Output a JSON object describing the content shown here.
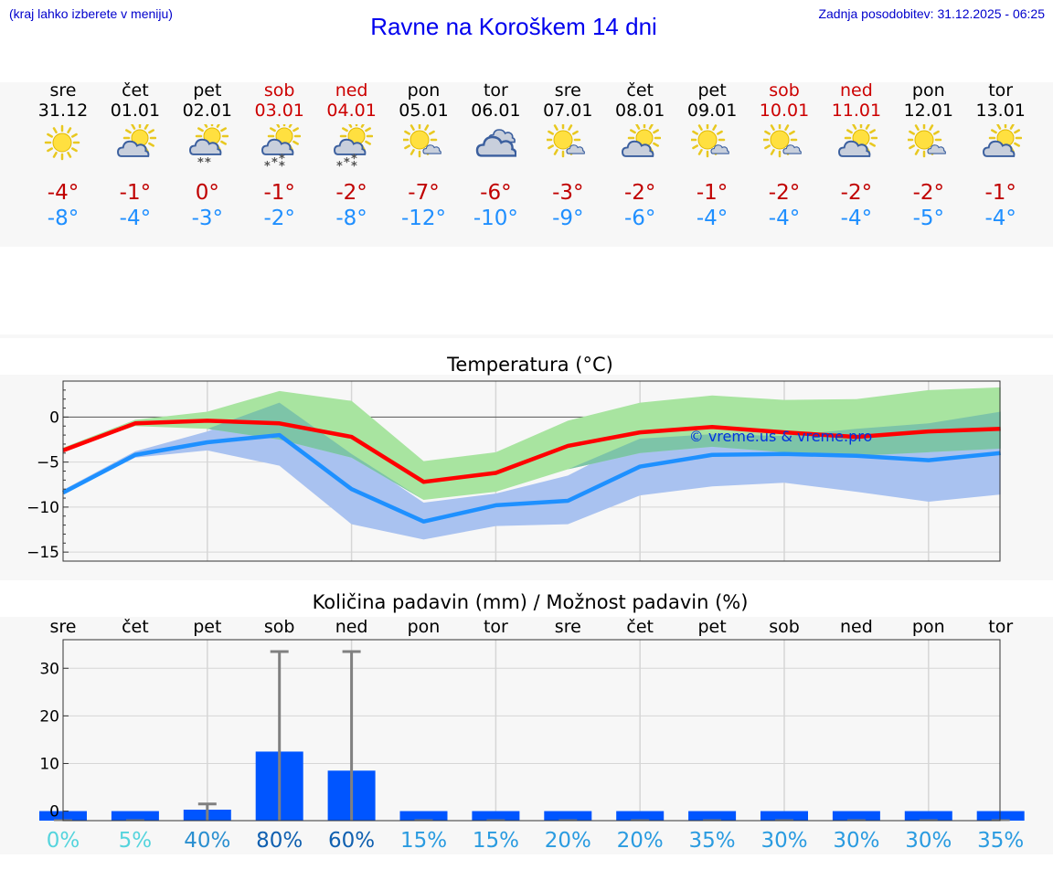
{
  "header": {
    "hint": "(kraj lahko izberete v meniju)",
    "title": "Ravne na Koroškem 14 dni",
    "updated": "Zadnja posodobitev: 31.12.2025 - 06:25"
  },
  "days": [
    {
      "name": "sre",
      "date": "31.12",
      "weekend": false,
      "icon": "sun-icon",
      "tmax": "-4°",
      "tmin": "-8°"
    },
    {
      "name": "čet",
      "date": "01.01",
      "weekend": false,
      "icon": "sun-behind-cloud-icon",
      "tmax": "-1°",
      "tmin": "-4°"
    },
    {
      "name": "pet",
      "date": "02.01",
      "weekend": false,
      "icon": "cloud-light-snow-icon",
      "tmax": "0°",
      "tmin": "-3°"
    },
    {
      "name": "sob",
      "date": "03.01",
      "weekend": true,
      "icon": "cloud-snow-icon",
      "tmax": "-1°",
      "tmin": "-2°"
    },
    {
      "name": "ned",
      "date": "04.01",
      "weekend": true,
      "icon": "cloud-snow-icon",
      "tmax": "-2°",
      "tmin": "-8°"
    },
    {
      "name": "pon",
      "date": "05.01",
      "weekend": false,
      "icon": "sun-small-cloud-icon",
      "tmax": "-7°",
      "tmin": "-12°"
    },
    {
      "name": "tor",
      "date": "06.01",
      "weekend": false,
      "icon": "overcast-icon",
      "tmax": "-6°",
      "tmin": "-10°"
    },
    {
      "name": "sre",
      "date": "07.01",
      "weekend": false,
      "icon": "sun-small-cloud-icon",
      "tmax": "-3°",
      "tmin": "-9°"
    },
    {
      "name": "čet",
      "date": "08.01",
      "weekend": false,
      "icon": "sun-behind-cloud-icon",
      "tmax": "-2°",
      "tmin": "-6°"
    },
    {
      "name": "pet",
      "date": "09.01",
      "weekend": false,
      "icon": "sun-small-cloud-icon",
      "tmax": "-1°",
      "tmin": "-4°"
    },
    {
      "name": "sob",
      "date": "10.01",
      "weekend": true,
      "icon": "sun-small-cloud-icon",
      "tmax": "-2°",
      "tmin": "-4°"
    },
    {
      "name": "ned",
      "date": "11.01",
      "weekend": true,
      "icon": "sun-behind-cloud-icon",
      "tmax": "-2°",
      "tmin": "-4°"
    },
    {
      "name": "pon",
      "date": "12.01",
      "weekend": false,
      "icon": "sun-small-cloud-icon",
      "tmax": "-2°",
      "tmin": "-5°"
    },
    {
      "name": "tor",
      "date": "13.01",
      "weekend": false,
      "icon": "sun-behind-cloud-icon",
      "tmax": "-1°",
      "tmin": "-4°"
    }
  ],
  "colors": {
    "max_line": "#ff0000",
    "min_line": "#1e90ff",
    "max_band": "#a8e4a0",
    "min_band": "#a9c2f0",
    "overlap_band": "#7dc4a8",
    "precip_bar": "#0055ff",
    "error_bar": "#808080"
  },
  "chart_data": [
    {
      "type": "line",
      "title": "Temperatura (°C)",
      "watermark": "© vreme.us & vreme.pro",
      "ylim": [
        -16,
        4
      ],
      "yticks": [
        0,
        -5,
        -10,
        -15
      ],
      "ytick_labels": [
        "0",
        "−5",
        "−10",
        "−15"
      ],
      "x": [
        0,
        1,
        2,
        3,
        4,
        5,
        6,
        7,
        8,
        9,
        10,
        11,
        12,
        13
      ],
      "series": [
        {
          "name": "max",
          "values": [
            -3.7,
            -0.7,
            -0.4,
            -0.7,
            -2.2,
            -7.2,
            -6.2,
            -3.2,
            -1.7,
            -1.1,
            -1.7,
            -2.2,
            -1.6,
            -1.3
          ],
          "band_low": [
            -3.7,
            -1.0,
            -1.3,
            -2.5,
            -4.5,
            -9.2,
            -8.3,
            -5.8,
            -4.0,
            -3.3,
            -3.9,
            -4.3,
            -3.9,
            -3.5
          ],
          "band_high": [
            -3.4,
            -0.3,
            0.6,
            2.9,
            1.8,
            -4.9,
            -3.9,
            -0.4,
            1.6,
            2.4,
            1.9,
            2.0,
            3.0,
            3.3
          ]
        },
        {
          "name": "min",
          "values": [
            -8.4,
            -4.2,
            -2.8,
            -2.0,
            -8.0,
            -11.6,
            -9.8,
            -9.3,
            -5.5,
            -4.2,
            -4.1,
            -4.3,
            -4.8,
            -4.0
          ],
          "band_low": [
            -8.6,
            -4.5,
            -3.7,
            -5.4,
            -11.9,
            -13.6,
            -12.1,
            -11.9,
            -8.7,
            -7.7,
            -7.3,
            -8.3,
            -9.4,
            -8.6
          ],
          "band_high": [
            -8.1,
            -3.8,
            -1.6,
            1.6,
            -4.1,
            -9.5,
            -8.5,
            -6.5,
            -2.4,
            -1.9,
            -2.1,
            -1.3,
            -0.7,
            0.6
          ]
        }
      ]
    },
    {
      "type": "bar",
      "title": "Količina padavin (mm) / Možnost padavin (%)",
      "ylim": [
        -2,
        36
      ],
      "yticks": [
        0,
        10,
        20,
        30
      ],
      "ytick_labels": [
        "0",
        "10",
        "20",
        "30"
      ],
      "categories": [
        "sre",
        "čet",
        "pet",
        "sob",
        "ned",
        "pon",
        "tor",
        "sre",
        "čet",
        "pet",
        "sob",
        "ned",
        "pon",
        "tor"
      ],
      "values": [
        0,
        0,
        0.3,
        12.5,
        8.5,
        0,
        0,
        0,
        0,
        0,
        0,
        0,
        0,
        0
      ],
      "error_high": [
        0,
        0,
        1.5,
        33.5,
        33.5,
        0,
        0,
        0,
        0,
        0,
        0,
        0,
        0,
        0
      ],
      "probability_labels": [
        "0%",
        "5%",
        "40%",
        "80%",
        "60%",
        "15%",
        "15%",
        "20%",
        "20%",
        "35%",
        "30%",
        "30%",
        "30%",
        "35%"
      ],
      "probability_colors": [
        "#55d4dd",
        "#55d4dd",
        "#2a8fd0",
        "#1060b0",
        "#1060b0",
        "#2a9be0",
        "#2a9be0",
        "#2a9be0",
        "#2a9be0",
        "#2a9be0",
        "#2a9be0",
        "#2a9be0",
        "#2a9be0",
        "#2a9be0"
      ]
    }
  ]
}
